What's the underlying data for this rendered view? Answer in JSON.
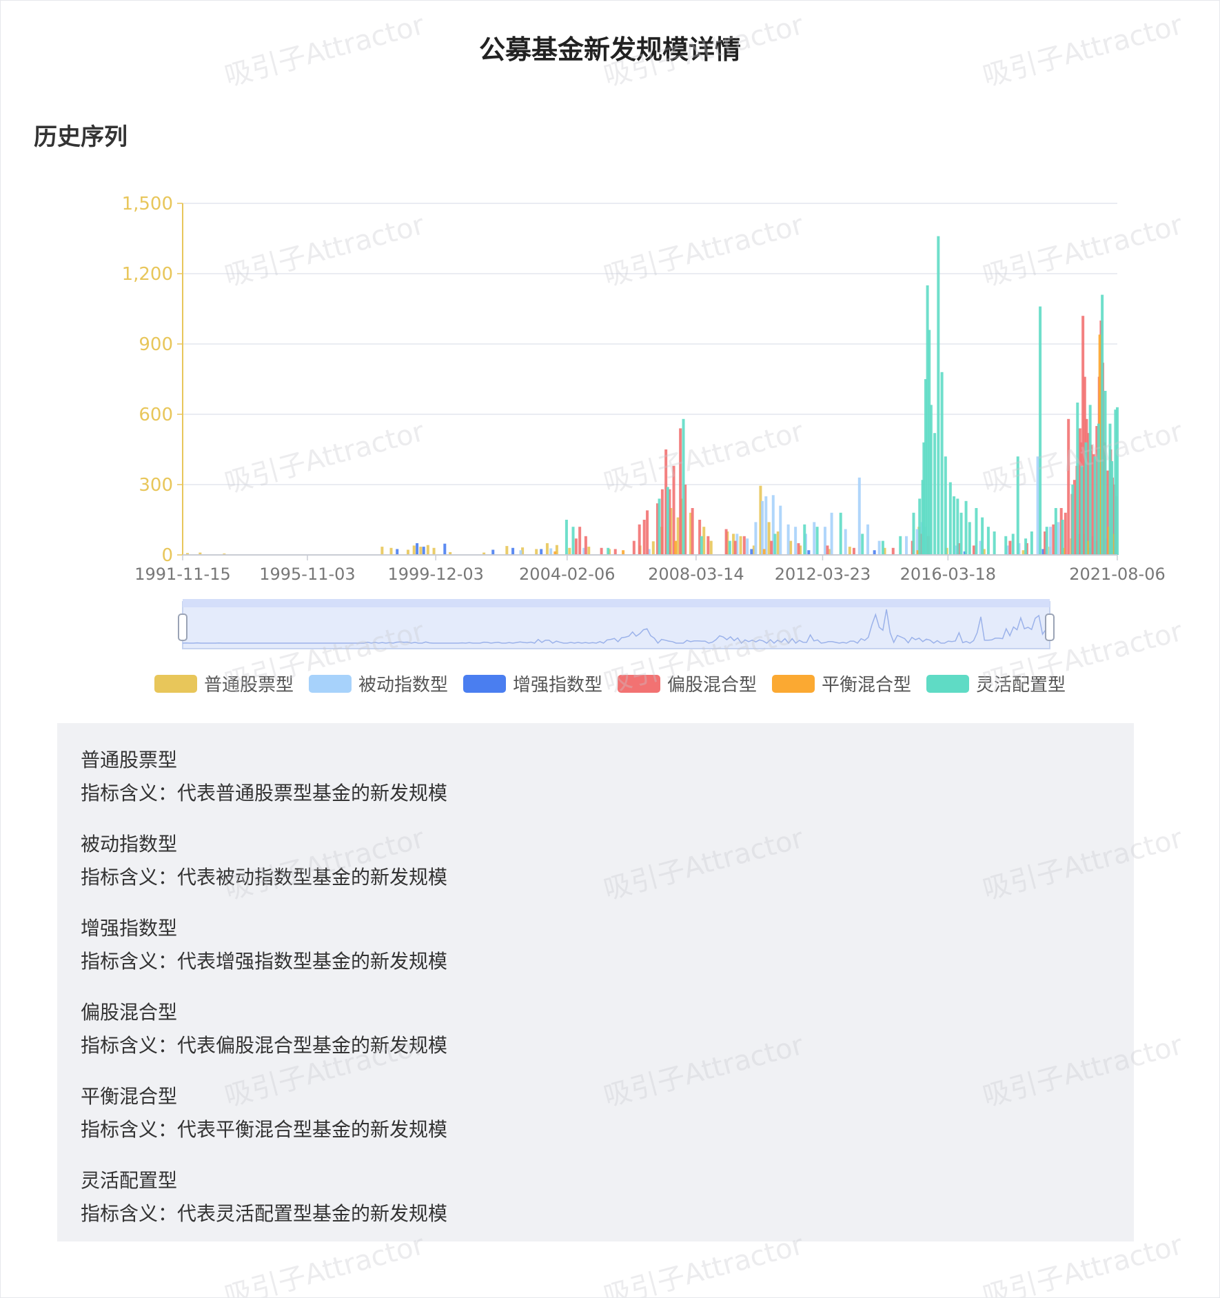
{
  "title": "公募基金新发规模详情",
  "section_title": "历史序列",
  "watermark_text": "吸引子Attractor",
  "colors": {
    "axis_y": "#e8c65a",
    "axis_x_label": "#777777",
    "grid": "#e3e6ee",
    "datazoom_fill": "#e4ebfb",
    "datazoom_border": "#c6d3ef",
    "datazoom_line": "#9bb2ea",
    "panel_bg": "#f0f1f4"
  },
  "legend": [
    {
      "name": "普通股票型",
      "color": "#e8c65a"
    },
    {
      "name": "被动指数型",
      "color": "#a7d2fb"
    },
    {
      "name": "增强指数型",
      "color": "#4a7ef0"
    },
    {
      "name": "偏股混合型",
      "color": "#f27272"
    },
    {
      "name": "平衡混合型",
      "color": "#fba932"
    },
    {
      "name": "灵活配置型",
      "color": "#5fdbc5"
    }
  ],
  "descriptions": [
    {
      "name": "普通股票型",
      "text": "指标含义：代表普通股票型基金的新发规模"
    },
    {
      "name": "被动指数型",
      "text": "指标含义：代表被动指数型基金的新发规模"
    },
    {
      "name": "增强指数型",
      "text": "指标含义：代表增强指数型基金的新发规模"
    },
    {
      "name": "偏股混合型",
      "text": "指标含义：代表偏股混合型基金的新发规模"
    },
    {
      "name": "平衡混合型",
      "text": "指标含义：代表平衡混合型基金的新发规模"
    },
    {
      "name": "灵活配置型",
      "text": "指标含义：代表灵活配置型基金的新发规模"
    }
  ],
  "chart_data": {
    "type": "bar",
    "stacked": false,
    "x_type": "date",
    "x_ticks": [
      "1991-11-15",
      "1995-11-03",
      "1999-12-03",
      "2004-02-06",
      "2008-03-14",
      "2012-03-23",
      "2016-03-18",
      "2021-08-06"
    ],
    "xlim": [
      "1991-11-15",
      "2021-08-06"
    ],
    "ylim": [
      0,
      1500
    ],
    "y_ticks": [
      0,
      300,
      600,
      900,
      1200,
      1500
    ],
    "y_tick_labels": [
      "0",
      "300",
      "600",
      "900",
      "1,200",
      "1,500"
    ],
    "grid": true,
    "legend_position": "bottom",
    "datazoom": true,
    "series": [
      {
        "name": "普通股票型",
        "points": [
          [
            "1992-01-10",
            8
          ],
          [
            "1992-06-05",
            10
          ],
          [
            "1993-03-12",
            6
          ],
          [
            "1998-03-20",
            35
          ],
          [
            "1998-07-03",
            30
          ],
          [
            "1999-01-15",
            22
          ],
          [
            "1999-03-26",
            40
          ],
          [
            "1999-06-11",
            35
          ],
          [
            "1999-09-03",
            42
          ],
          [
            "1999-11-12",
            30
          ],
          [
            "2000-05-19",
            12
          ],
          [
            "2001-06-15",
            10
          ],
          [
            "2002-03-08",
            38
          ],
          [
            "2002-09-06",
            32
          ],
          [
            "2003-02-14",
            25
          ],
          [
            "2003-06-20",
            50
          ],
          [
            "2003-10-10",
            42
          ],
          [
            "2004-03-05",
            30
          ],
          [
            "2004-10-15",
            35
          ],
          [
            "2005-06-10",
            25
          ],
          [
            "2006-06-02",
            40
          ],
          [
            "2006-11-03",
            58
          ],
          [
            "2007-02-09",
            120
          ],
          [
            "2007-05-25",
            200
          ],
          [
            "2007-08-17",
            160
          ],
          [
            "2007-09-28",
            240
          ],
          [
            "2008-01-11",
            180
          ],
          [
            "2008-06-13",
            120
          ],
          [
            "2008-09-05",
            60
          ],
          [
            "2009-03-13",
            100
          ],
          [
            "2009-05-22",
            90
          ],
          [
            "2009-08-14",
            80
          ],
          [
            "2010-01-15",
            40
          ],
          [
            "2010-04-02",
            295
          ],
          [
            "2010-07-09",
            140
          ],
          [
            "2010-10-22",
            100
          ],
          [
            "2011-03-18",
            60
          ],
          [
            "2011-07-08",
            40
          ],
          [
            "2012-06-15",
            25
          ],
          [
            "2013-02-01",
            35
          ],
          [
            "2014-03-14",
            30
          ],
          [
            "2015-04-17",
            120
          ],
          [
            "2015-06-05",
            95
          ],
          [
            "2015-06-19",
            60
          ],
          [
            "2016-03-04",
            30
          ],
          [
            "2017-05-12",
            25
          ],
          [
            "2018-08-10",
            20
          ],
          [
            "2019-06-14",
            35
          ],
          [
            "2020-02-21",
            70
          ],
          [
            "2020-07-17",
            90
          ],
          [
            "2020-12-04",
            60
          ],
          [
            "2021-01-22",
            110
          ],
          [
            "2021-05-07",
            60
          ]
        ]
      },
      {
        "name": "被动指数型",
        "points": [
          [
            "2002-08-16",
            20
          ],
          [
            "2003-08-01",
            28
          ],
          [
            "2004-08-20",
            30
          ],
          [
            "2006-09-15",
            25
          ],
          [
            "2009-07-03",
            90
          ],
          [
            "2009-10-30",
            70
          ],
          [
            "2010-02-05",
            140
          ],
          [
            "2010-04-23",
            230
          ],
          [
            "2010-06-04",
            250
          ],
          [
            "2010-08-27",
            255
          ],
          [
            "2010-11-19",
            210
          ],
          [
            "2011-02-18",
            130
          ],
          [
            "2011-05-13",
            120
          ],
          [
            "2011-09-09",
            90
          ],
          [
            "2011-12-16",
            140
          ],
          [
            "2012-04-20",
            120
          ],
          [
            "2012-07-06",
            180
          ],
          [
            "2012-12-14",
            110
          ],
          [
            "2013-05-24",
            330
          ],
          [
            "2013-08-30",
            130
          ],
          [
            "2014-01-10",
            60
          ],
          [
            "2014-11-21",
            80
          ],
          [
            "2015-03-27",
            110
          ],
          [
            "2015-05-22",
            140
          ],
          [
            "2015-06-26",
            120
          ],
          [
            "2016-06-17",
            40
          ],
          [
            "2017-03-31",
            60
          ],
          [
            "2018-02-09",
            40
          ],
          [
            "2018-06-22",
            50
          ],
          [
            "2019-01-25",
            420
          ],
          [
            "2019-06-21",
            120
          ],
          [
            "2019-09-20",
            140
          ],
          [
            "2020-05-15",
            90
          ],
          [
            "2020-10-16",
            80
          ],
          [
            "2021-03-26",
            70
          ],
          [
            "2021-06-25",
            60
          ]
        ]
      },
      {
        "name": "增强指数型",
        "points": [
          [
            "1998-09-11",
            25
          ],
          [
            "1999-04-30",
            50
          ],
          [
            "1999-07-16",
            35
          ],
          [
            "2000-03-17",
            48
          ],
          [
            "2001-09-28",
            22
          ],
          [
            "2002-05-17",
            30
          ],
          [
            "2003-04-11",
            25
          ],
          [
            "2009-12-18",
            25
          ],
          [
            "2011-10-14",
            20
          ],
          [
            "2013-11-15",
            20
          ],
          [
            "2016-09-30",
            15
          ],
          [
            "2019-03-29",
            25
          ],
          [
            "2020-09-18",
            30
          ],
          [
            "2021-07-09",
            35
          ]
        ]
      },
      {
        "name": "偏股混合型",
        "points": [
          [
            "2004-05-21",
            70
          ],
          [
            "2004-07-02",
            120
          ],
          [
            "2004-09-10",
            80
          ],
          [
            "2005-03-11",
            30
          ],
          [
            "2005-08-19",
            25
          ],
          [
            "2006-03-24",
            60
          ],
          [
            "2006-05-26",
            130
          ],
          [
            "2006-07-21",
            150
          ],
          [
            "2006-08-25",
            190
          ],
          [
            "2006-12-22",
            220
          ],
          [
            "2007-02-16",
            280
          ],
          [
            "2007-03-30",
            450
          ],
          [
            "2007-05-11",
            280
          ],
          [
            "2007-06-29",
            380
          ],
          [
            "2007-09-14",
            540
          ],
          [
            "2007-11-09",
            300
          ],
          [
            "2008-02-01",
            200
          ],
          [
            "2008-04-25",
            150
          ],
          [
            "2008-08-01",
            80
          ],
          [
            "2009-02-27",
            110
          ],
          [
            "2009-06-12",
            60
          ],
          [
            "2009-09-25",
            80
          ],
          [
            "2010-08-06",
            60
          ],
          [
            "2011-06-17",
            50
          ],
          [
            "2012-05-18",
            40
          ],
          [
            "2013-03-22",
            30
          ],
          [
            "2014-06-20",
            30
          ],
          [
            "2015-01-30",
            60
          ],
          [
            "2015-05-08",
            90
          ],
          [
            "2015-07-31",
            80
          ],
          [
            "2016-07-22",
            50
          ],
          [
            "2017-01-13",
            40
          ],
          [
            "2018-03-09",
            60
          ],
          [
            "2018-09-21",
            50
          ],
          [
            "2019-04-19",
            100
          ],
          [
            "2019-07-26",
            130
          ],
          [
            "2019-10-25",
            200
          ],
          [
            "2019-12-13",
            180
          ],
          [
            "2020-01-17",
            580
          ],
          [
            "2020-02-28",
            260
          ],
          [
            "2020-03-27",
            320
          ],
          [
            "2020-04-24",
            380
          ],
          [
            "2020-05-29",
            540
          ],
          [
            "2020-06-12",
            480
          ],
          [
            "2020-07-03",
            1020
          ],
          [
            "2020-07-24",
            760
          ],
          [
            "2020-08-14",
            580
          ],
          [
            "2020-09-04",
            520
          ],
          [
            "2020-10-09",
            470
          ],
          [
            "2020-11-06",
            430
          ],
          [
            "2020-12-11",
            550
          ],
          [
            "2021-01-08",
            760
          ],
          [
            "2021-01-29",
            1000
          ],
          [
            "2021-02-19",
            820
          ],
          [
            "2021-03-12",
            480
          ],
          [
            "2021-04-16",
            360
          ],
          [
            "2021-05-21",
            450
          ],
          [
            "2021-06-11",
            330
          ],
          [
            "2021-07-02",
            300
          ],
          [
            "2021-07-23",
            250
          ]
        ]
      },
      {
        "name": "平衡混合型",
        "points": [
          [
            "2003-09-19",
            15
          ],
          [
            "2005-11-18",
            20
          ],
          [
            "2007-07-20",
            60
          ],
          [
            "2010-05-14",
            25
          ],
          [
            "2015-04-03",
            20
          ],
          [
            "2019-11-22",
            30
          ],
          [
            "2020-08-28",
            60
          ],
          [
            "2021-01-15",
            940
          ],
          [
            "2021-02-05",
            300
          ],
          [
            "2021-04-30",
            120
          ],
          [
            "2021-06-18",
            90
          ]
        ]
      },
      {
        "name": "灵活配置型",
        "points": [
          [
            "2004-01-30",
            150
          ],
          [
            "2004-04-16",
            120
          ],
          [
            "2005-05-27",
            30
          ],
          [
            "2007-01-12",
            240
          ],
          [
            "2007-04-20",
            290
          ],
          [
            "2007-10-19",
            580
          ],
          [
            "2008-05-16",
            80
          ],
          [
            "2009-04-10",
            60
          ],
          [
            "2010-09-17",
            90
          ],
          [
            "2011-08-26",
            130
          ],
          [
            "2012-01-20",
            120
          ],
          [
            "2012-10-19",
            180
          ],
          [
            "2013-06-28",
            90
          ],
          [
            "2014-02-21",
            60
          ],
          [
            "2014-09-12",
            80
          ],
          [
            "2015-02-13",
            180
          ],
          [
            "2015-04-24",
            240
          ],
          [
            "2015-05-29",
            320
          ],
          [
            "2015-06-12",
            480
          ],
          [
            "2015-07-03",
            750
          ],
          [
            "2015-07-24",
            1150
          ],
          [
            "2015-08-14",
            960
          ],
          [
            "2015-09-04",
            640
          ],
          [
            "2015-10-16",
            520
          ],
          [
            "2015-11-27",
            1360
          ],
          [
            "2016-01-08",
            780
          ],
          [
            "2016-02-19",
            420
          ],
          [
            "2016-04-15",
            310
          ],
          [
            "2016-05-27",
            250
          ],
          [
            "2016-07-08",
            240
          ],
          [
            "2016-08-19",
            180
          ],
          [
            "2016-10-14",
            230
          ],
          [
            "2016-11-25",
            140
          ],
          [
            "2017-02-10",
            200
          ],
          [
            "2017-04-21",
            160
          ],
          [
            "2017-06-30",
            120
          ],
          [
            "2017-09-08",
            100
          ],
          [
            "2018-01-19",
            80
          ],
          [
            "2018-04-13",
            90
          ],
          [
            "2018-06-08",
            420
          ],
          [
            "2018-09-07",
            70
          ],
          [
            "2018-11-16",
            100
          ],
          [
            "2019-02-22",
            1060
          ],
          [
            "2019-05-10",
            120
          ],
          [
            "2019-08-23",
            200
          ],
          [
            "2019-11-08",
            150
          ],
          [
            "2020-03-06",
            300
          ],
          [
            "2020-05-01",
            650
          ],
          [
            "2020-06-19",
            380
          ],
          [
            "2020-08-07",
            480
          ],
          [
            "2020-09-25",
            640
          ],
          [
            "2020-11-20",
            420
          ],
          [
            "2021-01-01",
            560
          ],
          [
            "2021-02-12",
            1110
          ],
          [
            "2021-03-19",
            700
          ],
          [
            "2021-05-14",
            560
          ],
          [
            "2021-06-04",
            400
          ],
          [
            "2021-07-16",
            620
          ],
          [
            "2021-08-06",
            630
          ]
        ]
      }
    ]
  }
}
